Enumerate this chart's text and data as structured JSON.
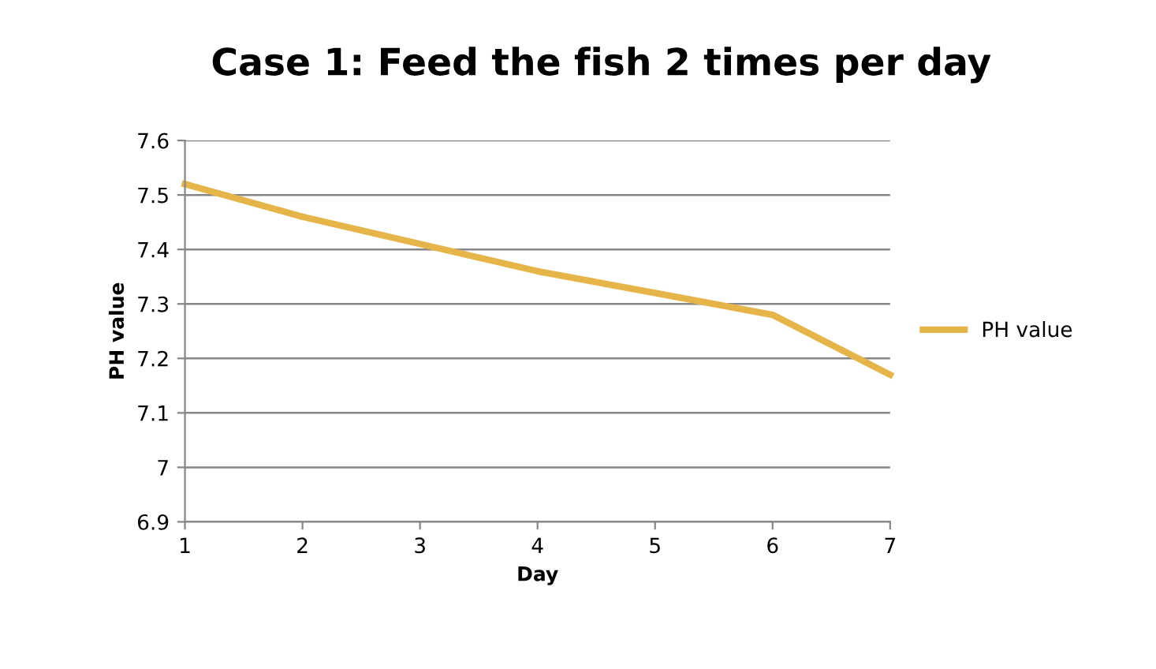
{
  "chart_data": {
    "type": "line",
    "title": "Case 1: Feed the fish 2 times per day",
    "xlabel": "Day",
    "ylabel": "PH value",
    "x": [
      1,
      2,
      3,
      4,
      5,
      6,
      7
    ],
    "series": [
      {
        "name": "PH value",
        "color": "#e6b54a",
        "values": [
          7.52,
          7.46,
          7.41,
          7.36,
          7.32,
          7.28,
          7.17
        ]
      }
    ],
    "xlim": [
      1,
      7
    ],
    "xticks": [
      1,
      2,
      3,
      4,
      5,
      6,
      7
    ],
    "ylim": [
      6.9,
      7.6
    ],
    "yticks": [
      6.9,
      7,
      7.1,
      7.2,
      7.3,
      7.4,
      7.5,
      7.6
    ],
    "grid": "y",
    "legend": "right"
  }
}
